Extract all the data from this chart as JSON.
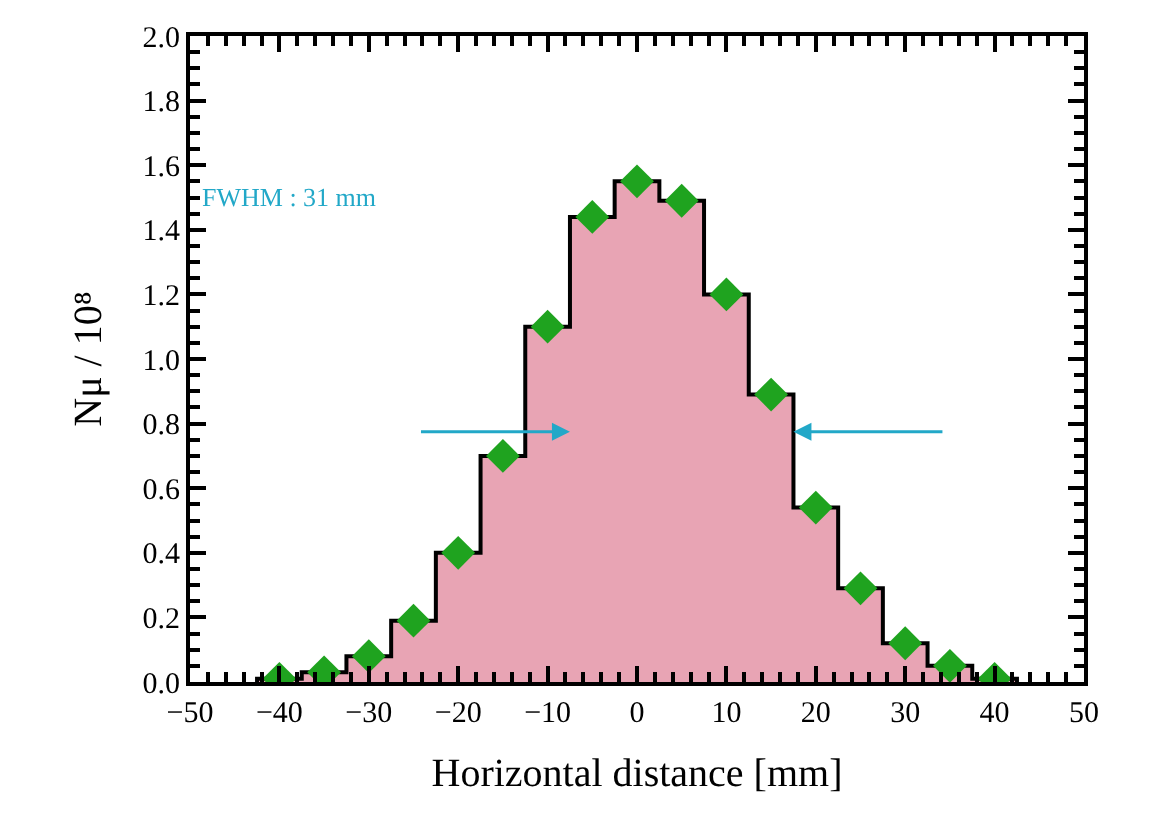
{
  "chart_data": {
    "type": "histogram",
    "xlabel": "Horizontal distance [mm]",
    "ylabel": "Nμ / 10⁸",
    "bins": [
      -42.5,
      -37.5,
      -32.5,
      -27.5,
      -22.5,
      -17.5,
      -12.5,
      -7.5,
      -2.5,
      2.5,
      7.5,
      12.5,
      17.5,
      22.5,
      27.5,
      32.5,
      37.5,
      42.5
    ],
    "values": [
      0.01,
      0.03,
      0.08,
      0.19,
      0.4,
      0.7,
      1.1,
      1.44,
      1.55,
      1.49,
      1.2,
      0.89,
      0.54,
      0.29,
      0.12,
      0.05,
      0.01
    ],
    "color": "#e8a4b4",
    "series": [
      {
        "type": "scatter",
        "marker": "diamond",
        "color": "#1fa31f",
        "x": [
          -40,
          -35,
          -30,
          -25,
          -20,
          -15,
          -10,
          -5,
          0,
          5,
          10,
          15,
          20,
          25,
          30,
          35,
          40
        ],
        "values": [
          0.01,
          0.03,
          0.08,
          0.19,
          0.4,
          0.7,
          1.1,
          1.44,
          1.55,
          1.49,
          1.2,
          0.89,
          0.54,
          0.29,
          0.12,
          0.05,
          0.01
        ]
      }
    ],
    "annotations": [
      "FWHM : 31 mm"
    ],
    "xlim": [
      -50,
      50
    ],
    "xticks": [
      -50,
      -40,
      -30,
      -20,
      -10,
      0,
      10,
      20,
      30,
      40,
      50
    ],
    "ylim": [
      0,
      2
    ],
    "yticks": [
      {
        "value": 0,
        "label": "0.0"
      },
      0.2,
      0.4,
      0.6,
      0.8,
      {
        "value": 1,
        "label": "1.0"
      },
      1.2,
      1.4,
      1.6,
      1.8,
      {
        "value": 2,
        "label": "2.0"
      }
    ]
  }
}
